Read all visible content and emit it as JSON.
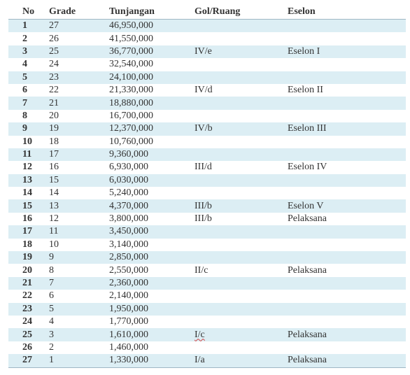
{
  "headers": {
    "no": "No",
    "grade": "Grade",
    "tunjangan": "Tunjangan",
    "gol_ruang": "Gol/Ruang",
    "eselon": "Eselon"
  },
  "rows": [
    {
      "no": "1",
      "grade": "27",
      "tunjangan": "46,950,000",
      "gol": "",
      "eselon": ""
    },
    {
      "no": "2",
      "grade": "26",
      "tunjangan": "41,550,000",
      "gol": "",
      "eselon": ""
    },
    {
      "no": "3",
      "grade": "25",
      "tunjangan": "36,770,000",
      "gol": "IV/e",
      "eselon": "Eselon I"
    },
    {
      "no": "4",
      "grade": "24",
      "tunjangan": "32,540,000",
      "gol": "",
      "eselon": ""
    },
    {
      "no": "5",
      "grade": "23",
      "tunjangan": "24,100,000",
      "gol": "",
      "eselon": ""
    },
    {
      "no": "6",
      "grade": "22",
      "tunjangan": "21,330,000",
      "gol": "IV/d",
      "eselon": "Eselon II"
    },
    {
      "no": "7",
      "grade": "21",
      "tunjangan": "18,880,000",
      "gol": "",
      "eselon": ""
    },
    {
      "no": "8",
      "grade": "20",
      "tunjangan": "16,700,000",
      "gol": "",
      "eselon": ""
    },
    {
      "no": "9",
      "grade": "19",
      "tunjangan": "12,370,000",
      "gol": "IV/b",
      "eselon": "Eselon III"
    },
    {
      "no": "10",
      "grade": "18",
      "tunjangan": "10,760,000",
      "gol": "",
      "eselon": ""
    },
    {
      "no": "11",
      "grade": "17",
      "tunjangan": "9,360,000",
      "gol": "",
      "eselon": ""
    },
    {
      "no": "12",
      "grade": "16",
      "tunjangan": "6,930,000",
      "gol": "III/d",
      "eselon": "Eselon IV"
    },
    {
      "no": "13",
      "grade": "15",
      "tunjangan": "6,030,000",
      "gol": "",
      "eselon": ""
    },
    {
      "no": "14",
      "grade": "14",
      "tunjangan": "5,240,000",
      "gol": "",
      "eselon": ""
    },
    {
      "no": "15",
      "grade": "13",
      "tunjangan": "4,370,000",
      "gol": "III/b",
      "eselon": "Eselon V"
    },
    {
      "no": "16",
      "grade": "12",
      "tunjangan": "3,800,000",
      "gol": "III/b",
      "eselon": "Pelaksana"
    },
    {
      "no": "17",
      "grade": "11",
      "tunjangan": "3,450,000",
      "gol": "",
      "eselon": ""
    },
    {
      "no": "18",
      "grade": "10",
      "tunjangan": "3,140,000",
      "gol": "",
      "eselon": ""
    },
    {
      "no": "19",
      "grade": "9",
      "tunjangan": "2,850,000",
      "gol": "",
      "eselon": ""
    },
    {
      "no": "20",
      "grade": "8",
      "tunjangan": "2,550,000",
      "gol": "II/c",
      "eselon": "Pelaksana"
    },
    {
      "no": "21",
      "grade": "7",
      "tunjangan": "2,360,000",
      "gol": "",
      "eselon": ""
    },
    {
      "no": "22",
      "grade": "6",
      "tunjangan": "2,140,000",
      "gol": "",
      "eselon": ""
    },
    {
      "no": "23",
      "grade": "5",
      "tunjangan": "1,950,000",
      "gol": "",
      "eselon": ""
    },
    {
      "no": "24",
      "grade": "4",
      "tunjangan": "1,770,000",
      "gol": "",
      "eselon": ""
    },
    {
      "no": "25",
      "grade": "3",
      "tunjangan": "1,610,000",
      "gol": "I/c",
      "eselon": "Pelaksana"
    },
    {
      "no": "26",
      "grade": "2",
      "tunjangan": "1,460,000",
      "gol": "",
      "eselon": ""
    },
    {
      "no": "27",
      "grade": "1",
      "tunjangan": "1,330,000",
      "gol": "I/a",
      "eselon": "Pelaksana"
    }
  ],
  "colors": {
    "stripe": "#dceef4",
    "text": "#333333",
    "rule": "#9fb7c4"
  }
}
